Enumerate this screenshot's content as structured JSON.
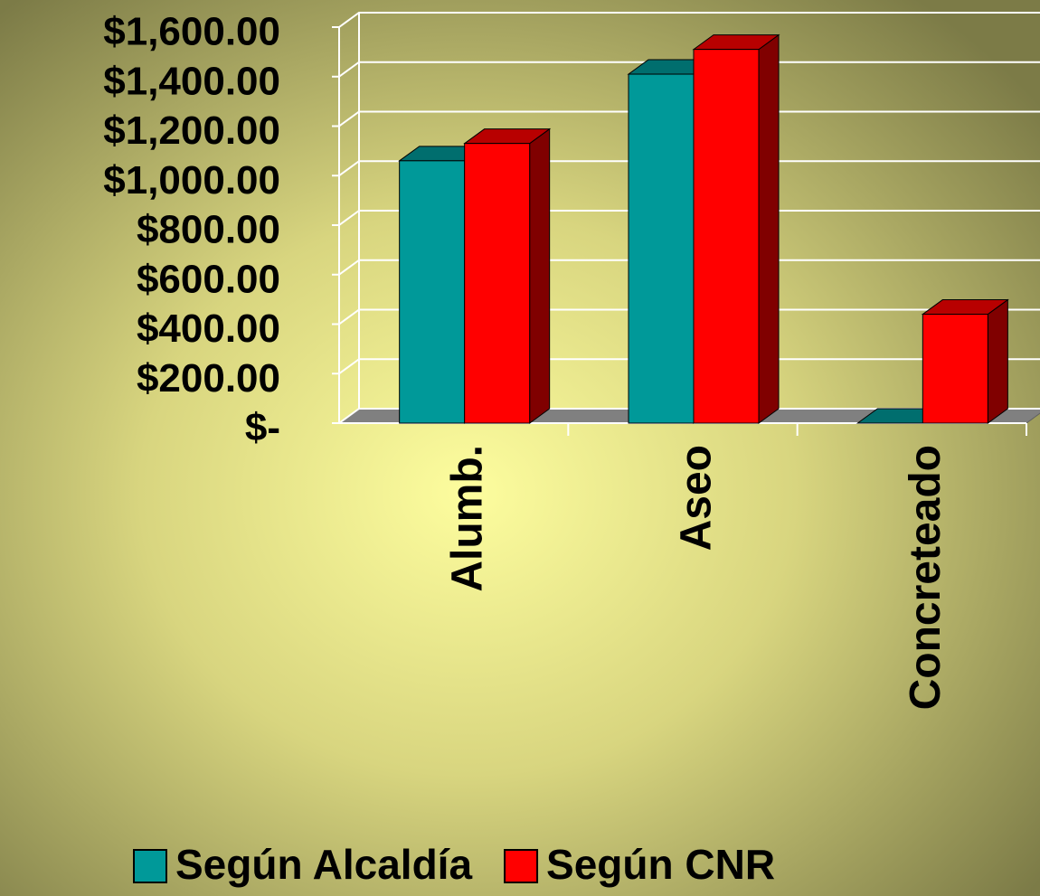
{
  "chart_data": {
    "type": "bar3d",
    "categories": [
      "Alumb.",
      "Aseo",
      "Concreteado"
    ],
    "series": [
      {
        "name": "Según Alcaldía",
        "color": "#009999",
        "values": [
          1060,
          1410,
          0
        ]
      },
      {
        "name": "Según CNR",
        "color": "#ff0000",
        "values": [
          1130,
          1510,
          440
        ]
      }
    ],
    "ylim": [
      0,
      1600
    ],
    "yticks": [
      {
        "value": 0,
        "label": "$-"
      },
      {
        "value": 200,
        "label": "$200.00"
      },
      {
        "value": 400,
        "label": "$400.00"
      },
      {
        "value": 600,
        "label": "$600.00"
      },
      {
        "value": 800,
        "label": "$800.00"
      },
      {
        "value": 1000,
        "label": "$1,000.00"
      },
      {
        "value": 1200,
        "label": "$1,200.00"
      },
      {
        "value": 1400,
        "label": "$1,400.00"
      },
      {
        "value": 1600,
        "label": "$1,600.00"
      }
    ],
    "grid": true,
    "legend": "bottom"
  }
}
